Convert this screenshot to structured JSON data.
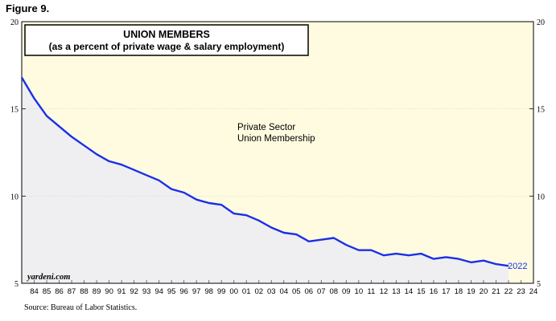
{
  "figure_label": "Figure 9.",
  "source": "Source: Bureau of Labor Statistics.",
  "chart_data": {
    "type": "area",
    "title": "UNION MEMBERS",
    "subtitle": "(as a percent of private wage & salary employment)",
    "annotation": "Private Sector\nUnion Membership",
    "watermark": "yardeni.com",
    "end_label": "2022",
    "xlim": [
      1983.6,
      2024.6
    ],
    "ylim": [
      5,
      20
    ],
    "y_ticks": [
      5,
      10,
      15,
      20
    ],
    "x_tick_labels": [
      "84",
      "85",
      "86",
      "87",
      "88",
      "89",
      "90",
      "91",
      "92",
      "93",
      "94",
      "95",
      "96",
      "97",
      "98",
      "99",
      "00",
      "01",
      "02",
      "03",
      "04",
      "05",
      "06",
      "07",
      "08",
      "09",
      "10",
      "11",
      "12",
      "13",
      "14",
      "15",
      "16",
      "17",
      "18",
      "19",
      "20",
      "21",
      "22",
      "23",
      "24"
    ],
    "x_tick_years": [
      1984,
      1985,
      1986,
      1987,
      1988,
      1989,
      1990,
      1991,
      1992,
      1993,
      1994,
      1995,
      1996,
      1997,
      1998,
      1999,
      2000,
      2001,
      2002,
      2003,
      2004,
      2005,
      2006,
      2007,
      2008,
      2009,
      2010,
      2011,
      2012,
      2013,
      2014,
      2015,
      2016,
      2017,
      2018,
      2019,
      2020,
      2021,
      2022,
      2023,
      2024
    ],
    "grid": true,
    "series": [
      {
        "x": [
          1983,
          1984,
          1985,
          1986,
          1987,
          1988,
          1989,
          1990,
          1991,
          1992,
          1993,
          1994,
          1995,
          1996,
          1997,
          1998,
          1999,
          2000,
          2001,
          2002,
          2003,
          2004,
          2005,
          2006,
          2007,
          2008,
          2009,
          2010,
          2011,
          2012,
          2013,
          2014,
          2015,
          2016,
          2017,
          2018,
          2019,
          2020,
          2021,
          2022
        ],
        "values": [
          16.8,
          15.6,
          14.6,
          14.0,
          13.4,
          12.9,
          12.4,
          12.0,
          11.8,
          11.5,
          11.2,
          10.9,
          10.4,
          10.2,
          9.8,
          9.6,
          9.5,
          9.0,
          8.9,
          8.6,
          8.2,
          7.9,
          7.8,
          7.4,
          7.5,
          7.6,
          7.2,
          6.9,
          6.9,
          6.6,
          6.7,
          6.6,
          6.7,
          6.4,
          6.5,
          6.4,
          6.2,
          6.3,
          6.1,
          6.0
        ]
      }
    ],
    "colors": {
      "line": "#1a2fe8",
      "plot_bg": "#fffbe0",
      "area_fill": "#efeff2",
      "end_label": "#1a2fe8"
    }
  }
}
